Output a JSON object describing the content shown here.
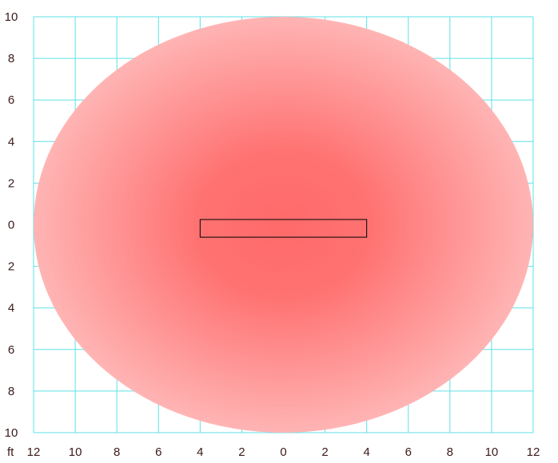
{
  "chart_data": {
    "type": "coverage-diagram",
    "unit_label": "ft",
    "x_ticks": [
      "12",
      "10",
      "8",
      "6",
      "4",
      "2",
      "0",
      "2",
      "4",
      "6",
      "8",
      "10",
      "12"
    ],
    "y_ticks": [
      "10",
      "8",
      "6",
      "4",
      "2",
      "0",
      "2",
      "4",
      "6",
      "8",
      "10"
    ],
    "x_range_ft": [
      -12,
      12
    ],
    "y_range_ft": [
      -10,
      10
    ],
    "grid": true,
    "coverage_ellipse": {
      "center_ft": [
        0,
        0
      ],
      "semi_axis_x_ft": 12,
      "semi_axis_y_ft": 10,
      "color_center": "#ff6a6a",
      "color_edge": "#ffb4b4"
    },
    "fixture": {
      "x_ft": [
        -4,
        4
      ],
      "y_ft": [
        -0.6,
        0.25
      ],
      "stroke": "#000000"
    },
    "grid_color": "#5fe0e6"
  }
}
